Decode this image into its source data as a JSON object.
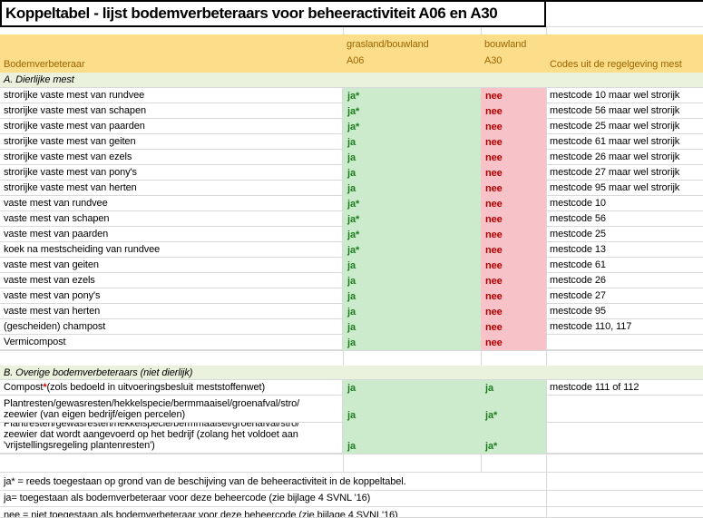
{
  "title": "Koppeltabel - lijst bodemverbeteraars voor beheeractiviteit A06 en A30",
  "header": {
    "col_bodemverbeteraar": "Bodemverbeteraar",
    "col_a06_land": "grasland/bouwland",
    "col_a06_code": "A06",
    "col_a30_land": "bouwland",
    "col_a30_code": "A30",
    "col_codes": "Codes uit de regelgeving mest"
  },
  "colors": {
    "header_fill": "#fbdd8a",
    "header_text": "#9c6500",
    "yes_fill": "#ccebcc",
    "yes_text": "#1e7b1e",
    "no_fill": "#f7c3c8",
    "no_text": "#b00000",
    "section_fill": "#eaf1dd",
    "star_red": "#e00000"
  },
  "sections": [
    {
      "label": "A. Dierlijke mest",
      "a30_fill": "pink",
      "rows": [
        {
          "name": "strorijke vaste mest van rundvee",
          "a06": "ja*",
          "a30": "nee",
          "code": "mestcode 10 maar wel strorijk"
        },
        {
          "name": "strorijke vaste mest van schapen",
          "a06": "ja*",
          "a30": "nee",
          "code": "mestcode 56 maar wel strorijk"
        },
        {
          "name": "strorijke vaste mest van paarden",
          "a06": "ja*",
          "a30": "nee",
          "code": "mestcode 25 maar wel strorijk"
        },
        {
          "name": "strorijke vaste mest van geiten",
          "a06": "ja",
          "a30": "nee",
          "code": "mestcode 61 maar wel strorijk"
        },
        {
          "name": "strorijke vaste mest van ezels",
          "a06": "ja",
          "a30": "nee",
          "code": "mestcode 26 maar wel strorijk"
        },
        {
          "name": "strorijke vaste mest van pony's",
          "a06": "ja",
          "a30": "nee",
          "code": "mestcode 27 maar wel strorijk"
        },
        {
          "name": "strorijke vaste mest van herten",
          "a06": "ja",
          "a30": "nee",
          "code": "mestcode 95 maar wel strorijk"
        },
        {
          "name": "vaste mest van rundvee",
          "a06": "ja*",
          "a30": "nee",
          "code": "mestcode 10"
        },
        {
          "name": "vaste mest van schapen",
          "a06": "ja*",
          "a30": "nee",
          "code": "mestcode 56"
        },
        {
          "name": "vaste mest van paarden",
          "a06": "ja*",
          "a30": "nee",
          "code": "mestcode 25"
        },
        {
          "name": "koek na mestscheiding van rundvee",
          "a06": "ja*",
          "a30": "nee",
          "code": "mestcode 13"
        },
        {
          "name": "vaste mest van geiten",
          "a06": "ja",
          "a30": "nee",
          "code": "mestcode 61"
        },
        {
          "name": "vaste mest van ezels",
          "a06": "ja",
          "a30": "nee",
          "code": "mestcode 26"
        },
        {
          "name": "vaste mest van pony's",
          "a06": "ja",
          "a30": "nee",
          "code": "mestcode 27"
        },
        {
          "name": "vaste mest van herten",
          "a06": "ja",
          "a30": "nee",
          "code": "mestcode 95"
        },
        {
          "name": "(gescheiden) champost",
          "a06": "ja",
          "a30": "nee",
          "code": "mestcode 110, 117"
        },
        {
          "name": "Vermicompost",
          "a06": "ja",
          "a30": "nee",
          "code": ""
        }
      ]
    },
    {
      "label": "B. Overige bodemverbeteraars (niet dierlijk)",
      "a30_fill": "green",
      "rows": [
        {
          "name_pre": "Compost ",
          "name_star": "*",
          "name_post": " (zols bedoeld in uitvoeringsbesluit meststoffenwet)",
          "a06": "ja",
          "a30": "ja",
          "code": "mestcode 111 of 112"
        },
        {
          "name": "Plantresten/gewasresten/hekkelspecie/bermmaaisel/groenafval/stro/\nzeewier (van eigen bedrijf/eigen percelen)",
          "a06": "ja",
          "a30": "ja*",
          "code": ""
        },
        {
          "name": "Plantresten/gewasresten/hekkelspecie/bermmaaisel/groenafval/stro/\nzeewier dat wordt aangevoerd op het bedrijf (zolang het voldoet aan\n'vrijstellingsregeling plantenresten')",
          "a06": "ja",
          "a30": "ja*",
          "code": ""
        }
      ]
    }
  ],
  "footnotes": [
    "ja* = reeds toegestaan op grond van de beschijving van de beheeractiviteit in de koppeltabel.",
    "ja= toegestaan als bodemverbeteraar voor deze beheercode (zie bijlage 4 SVNL '16)",
    "nee = niet toegestaan als bodemverbeteraar voor deze beheercode (zie bijlage 4 SVNL'16)"
  ]
}
